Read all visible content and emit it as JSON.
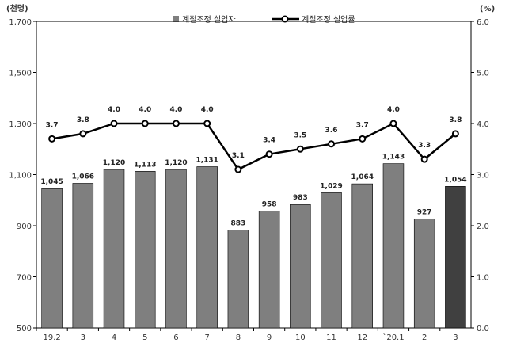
{
  "chart_data": {
    "type": "bar+line",
    "title": "",
    "left_axis_unit": "(천명)",
    "right_axis_unit": "(%)",
    "categories": [
      "19.2",
      "3",
      "4",
      "5",
      "6",
      "7",
      "8",
      "9",
      "10",
      "11",
      "12",
      "`20.1",
      "2",
      "3"
    ],
    "series": [
      {
        "name": "계절조정 실업자",
        "type": "bar",
        "axis": "left",
        "color": "#7f7f7f",
        "highlight_color": "#404040",
        "highlight_index": 13,
        "values": [
          1045,
          1066,
          1120,
          1113,
          1120,
          1131,
          883,
          958,
          983,
          1029,
          1064,
          1143,
          927,
          1054
        ],
        "labels": [
          "1,045",
          "1,066",
          "1,120",
          "1,113",
          "1,120",
          "1,131",
          "883",
          "958",
          "983",
          "1,029",
          "1,064",
          "1,143",
          "927",
          "1,054"
        ]
      },
      {
        "name": "계절조정 실업률",
        "type": "line",
        "axis": "right",
        "color": "#000000",
        "values": [
          3.7,
          3.8,
          4.0,
          4.0,
          4.0,
          4.0,
          3.1,
          3.4,
          3.5,
          3.6,
          3.7,
          4.0,
          3.3,
          3.8
        ],
        "labels": [
          "3.7",
          "3.8",
          "4.0",
          "4.0",
          "4.0",
          "4.0",
          "3.1",
          "3.4",
          "3.5",
          "3.6",
          "3.7",
          "4.0",
          "3.3",
          "3.8"
        ]
      }
    ],
    "left_axis": {
      "min": 500,
      "max": 1700,
      "ticks": [
        500,
        700,
        900,
        1100,
        1300,
        1500,
        1700
      ],
      "tick_labels": [
        "500",
        "700",
        "900",
        "1,100",
        "1,300",
        "1,500",
        "1,700"
      ]
    },
    "right_axis": {
      "min": 0,
      "max": 6,
      "ticks": [
        0,
        1,
        2,
        3,
        4,
        5,
        6
      ],
      "tick_labels": [
        "0.0",
        "1.0",
        "2.0",
        "3.0",
        "4.0",
        "5.0",
        "6.0"
      ]
    },
    "grid": false,
    "legend_position": "top-center"
  }
}
